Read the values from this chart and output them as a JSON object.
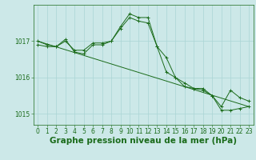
{
  "x": [
    0,
    1,
    2,
    3,
    4,
    5,
    6,
    7,
    8,
    9,
    10,
    11,
    12,
    13,
    14,
    15,
    16,
    17,
    18,
    19,
    20,
    21,
    22,
    23
  ],
  "series": [
    [
      1016.9,
      1016.85,
      1016.85,
      1017.0,
      1016.75,
      1016.75,
      1016.95,
      1016.95,
      1017.0,
      1017.35,
      1017.65,
      1017.55,
      1017.5,
      1016.85,
      1016.15,
      1016.0,
      1015.75,
      1015.7,
      1015.7,
      1015.5,
      1015.1,
      1015.1,
      1015.15,
      1015.2
    ],
    [
      1017.0,
      1016.9,
      1016.85,
      1017.05,
      1016.7,
      1016.65,
      1016.9,
      1016.9,
      1017.0,
      1017.4,
      1017.75,
      1017.65,
      1017.65,
      1016.85,
      1016.55,
      1016.0,
      1015.85,
      1015.7,
      1015.65,
      1015.5,
      1015.2,
      1015.65,
      1015.45,
      1015.35
    ]
  ],
  "trend_x": [
    0,
    23
  ],
  "trend_y": [
    1017.0,
    1015.2
  ],
  "line_color": "#1a6b1a",
  "bg_color": "#cce8e8",
  "grid_color": "#aad4d4",
  "xlabel": "Graphe pression niveau de la mer (hPa)",
  "ylim": [
    1014.7,
    1018.0
  ],
  "yticks": [
    1015.0,
    1016.0,
    1017.0
  ],
  "xticks": [
    0,
    1,
    2,
    3,
    4,
    5,
    6,
    7,
    8,
    9,
    10,
    11,
    12,
    13,
    14,
    15,
    16,
    17,
    18,
    19,
    20,
    21,
    22,
    23
  ],
  "tick_fontsize": 5.5,
  "xlabel_fontsize": 7.5
}
